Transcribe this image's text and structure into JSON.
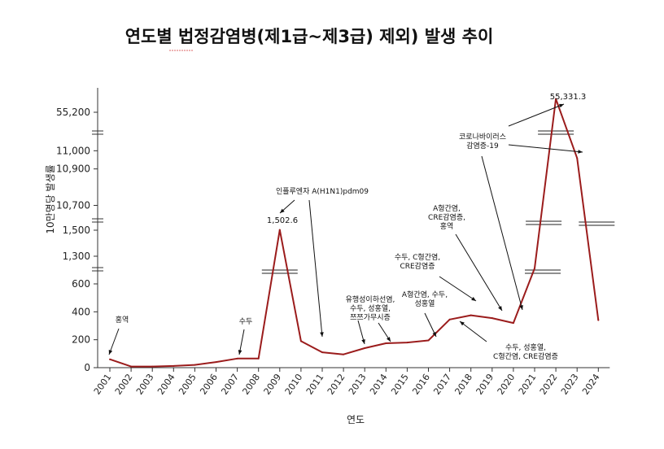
{
  "title": "연도별 법정감염병(제1급~제3급) 제외) 발생 추이",
  "chart_data": {
    "type": "line",
    "xlabel": "연도",
    "ylabel": "10만명당 발생률",
    "ytick_labels": [
      "0",
      "200",
      "400",
      "600",
      "1,300",
      "1,500",
      "10,700",
      "10,900",
      "11,000",
      "55,200"
    ],
    "line_color": "#9b1c1c",
    "x": [
      "2001",
      "2002",
      "2003",
      "2004",
      "2005",
      "2006",
      "2007",
      "2008",
      "2009",
      "2010",
      "2011",
      "2012",
      "2013",
      "2014",
      "2015",
      "2016",
      "2017",
      "2018",
      "2019",
      "2020",
      "2021",
      "2022",
      "2023",
      "2024"
    ],
    "y": [
      60,
      8,
      8,
      12,
      20,
      40,
      65,
      65,
      1502.6,
      190,
      110,
      95,
      140,
      175,
      180,
      195,
      345,
      375,
      355,
      320,
      740,
      55331.3,
      10960,
      340
    ],
    "annotations": [
      {
        "id": "a2001",
        "lines": [
          "홍역"
        ]
      },
      {
        "id": "a2007",
        "lines": [
          "수두"
        ]
      },
      {
        "id": "a2009",
        "lines": [
          "인플루엔자 A(H1N1)pdm09"
        ]
      },
      {
        "id": "a2009v",
        "lines": [
          "1,502.6"
        ]
      },
      {
        "id": "a2013",
        "lines": [
          "유행성이하선염,",
          "수두, 성홍열,",
          "쯔쯔가무시증"
        ]
      },
      {
        "id": "a2016",
        "lines": [
          "A형간염, 수두,",
          "성홍열"
        ]
      },
      {
        "id": "a2018",
        "lines": [
          "수두, C형간염,",
          "CRE감염증"
        ]
      },
      {
        "id": "a2019",
        "lines": [
          "A형간염,",
          "CRE감염증,",
          "홍역"
        ]
      },
      {
        "id": "a2017",
        "lines": [
          "수두, 성홍열,",
          "C형간염, CRE감염증"
        ]
      },
      {
        "id": "a2022",
        "lines": [
          "코로나바이러스",
          "감염증-19"
        ]
      },
      {
        "id": "a2022v",
        "lines": [
          "55,331.3"
        ]
      }
    ]
  }
}
